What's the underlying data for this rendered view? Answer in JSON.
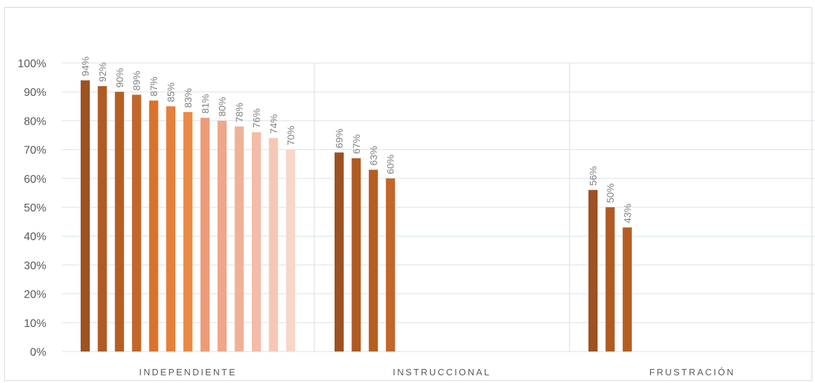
{
  "chart_data": {
    "type": "bar",
    "ylim": [
      0,
      100
    ],
    "yticks": [
      "0%",
      "10%",
      "20%",
      "30%",
      "40%",
      "50%",
      "60%",
      "70%",
      "80%",
      "90%",
      "100%"
    ],
    "grid": true,
    "groups": [
      {
        "label": "INDEPENDIENTE",
        "values": [
          94,
          92,
          90,
          89,
          87,
          85,
          83,
          81,
          80,
          78,
          76,
          74,
          70
        ],
        "data_labels": [
          "94%",
          "92%",
          "90%",
          "89%",
          "87%",
          "85%",
          "83%",
          "81%",
          "80%",
          "78%",
          "76%",
          "74%",
          "70%"
        ],
        "colors": [
          "#9c5223",
          "#b05a24",
          "#b65e22",
          "#c2662a",
          "#d9722c",
          "#e5803a",
          "#ea8a43",
          "#ed9a77",
          "#efa68a",
          "#f1b199",
          "#f3bca8",
          "#f6c7b7",
          "#f8d6ca"
        ]
      },
      {
        "label": "INSTRUCCIONAL",
        "values": [
          69,
          67,
          63,
          60
        ],
        "data_labels": [
          "69%",
          "67%",
          "63%",
          "60%"
        ],
        "colors": [
          "#9c5223",
          "#b05a24",
          "#b65e22",
          "#c2662a"
        ]
      },
      {
        "label": "FRUSTRACIÓN",
        "values": [
          56,
          50,
          43
        ],
        "data_labels": [
          "56%",
          "50%",
          "43%"
        ],
        "colors": [
          "#9c5223",
          "#b05a24",
          "#b65e22"
        ]
      }
    ]
  }
}
